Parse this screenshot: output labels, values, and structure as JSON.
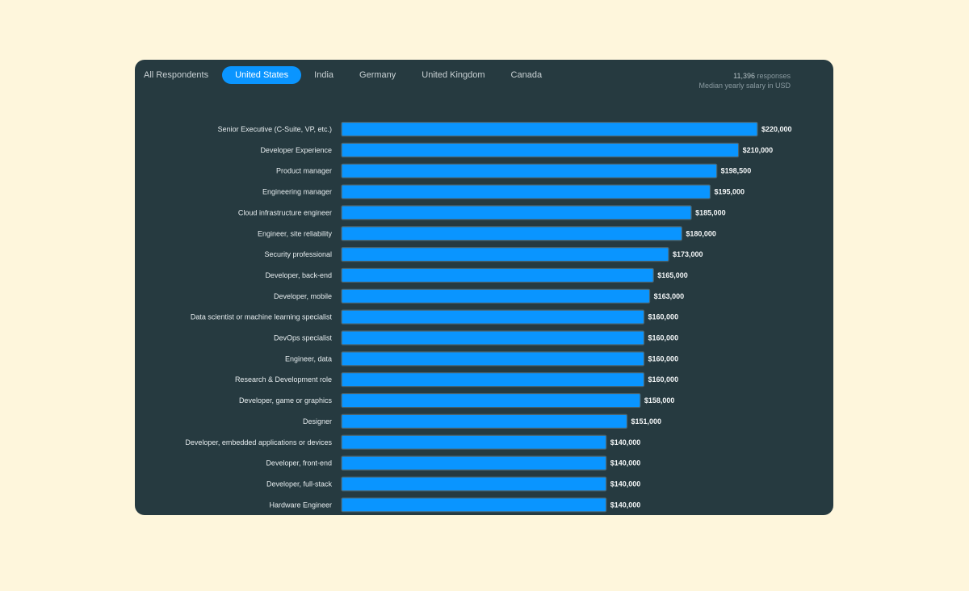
{
  "tabs": [
    {
      "label": "All Respondents",
      "active": false
    },
    {
      "label": "United States",
      "active": true
    },
    {
      "label": "India",
      "active": false
    },
    {
      "label": "Germany",
      "active": false
    },
    {
      "label": "United Kingdom",
      "active": false
    },
    {
      "label": "Canada",
      "active": false
    }
  ],
  "meta": {
    "count": "11,396",
    "count_suffix": " responses",
    "subtitle": "Median yearly salary in USD"
  },
  "colors": {
    "page_background": "#fef6dc",
    "card_background": "#263a40",
    "bar": "#0a95ff",
    "active_tab": "#0a95ff"
  },
  "chart_data": {
    "type": "bar",
    "orientation": "horizontal",
    "categories": [
      "Senior Executive (C-Suite, VP, etc.)",
      "Developer Experience",
      "Product manager",
      "Engineering manager",
      "Cloud infrastructure engineer",
      "Engineer, site reliability",
      "Security professional",
      "Developer, back-end",
      "Developer, mobile",
      "Data scientist or machine learning specialist",
      "DevOps specialist",
      "Engineer, data",
      "Research & Development role",
      "Developer, game or graphics",
      "Designer",
      "Developer, embedded applications or devices",
      "Developer, front-end",
      "Developer, full-stack",
      "Hardware Engineer"
    ],
    "values": [
      220000,
      210000,
      198500,
      195000,
      185000,
      180000,
      173000,
      165000,
      163000,
      160000,
      160000,
      160000,
      160000,
      158000,
      151000,
      140000,
      140000,
      140000,
      140000
    ],
    "value_labels": [
      "$220,000",
      "$210,000",
      "$198,500",
      "$195,000",
      "$185,000",
      "$180,000",
      "$173,000",
      "$165,000",
      "$163,000",
      "$160,000",
      "$160,000",
      "$160,000",
      "$160,000",
      "$158,000",
      "$151,000",
      "$140,000",
      "$140,000",
      "$140,000",
      "$140,000"
    ],
    "xlim": [
      0,
      220000
    ],
    "grid": false
  }
}
